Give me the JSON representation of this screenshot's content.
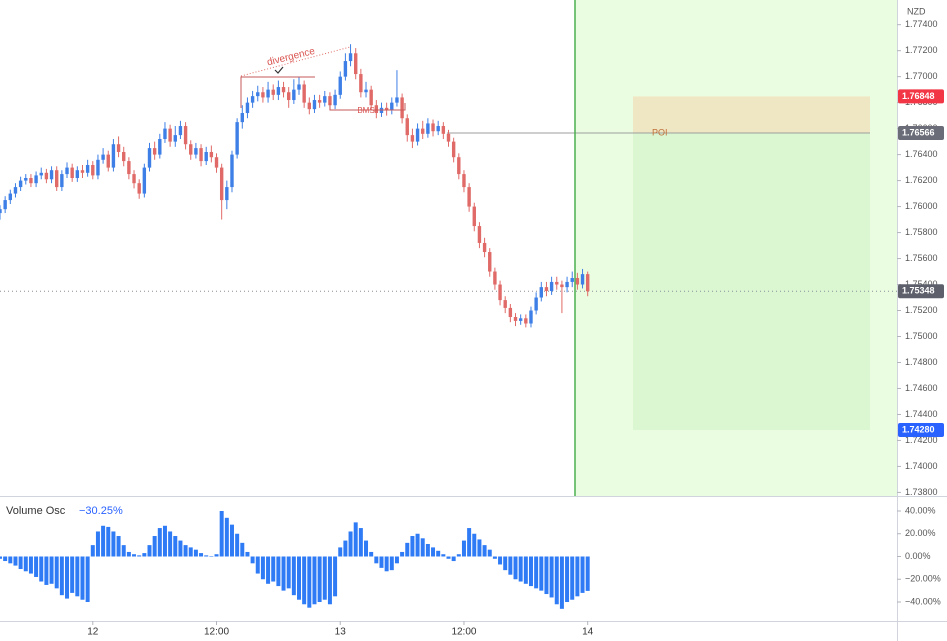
{
  "chart_data": {
    "type": "candlestick",
    "y_unit": "NZD",
    "x": [
      -9,
      -8.5,
      -8,
      -7.5,
      -7,
      -6.5,
      -6,
      -5.5,
      -5,
      -4.5,
      -4,
      -3.5,
      -3,
      -2.5,
      -2,
      -1.5,
      -1,
      -0.5,
      0,
      0.5,
      1,
      1.5,
      2,
      2.5,
      3,
      3.5,
      4,
      4.5,
      5,
      5.5,
      6,
      6.5,
      7,
      7.5,
      8,
      8.5,
      9,
      9.5,
      10,
      10.5,
      11,
      11.5,
      12,
      12.5,
      13,
      13.5,
      14,
      14.5,
      15,
      15.5,
      16,
      16.5,
      17,
      17.5,
      18,
      18.5,
      19,
      19.5,
      20,
      20.5,
      21,
      21.5,
      22,
      22.5,
      23,
      23.5,
      24,
      24.5,
      25,
      25.5,
      26,
      26.5,
      27,
      27.5,
      28,
      28.5,
      29,
      29.5,
      30,
      30.5,
      31,
      31.5,
      32,
      32.5,
      33,
      33.5,
      34,
      34.5,
      35,
      35.5,
      36,
      36.5,
      37,
      37.5,
      38,
      38.5,
      39,
      39.5,
      40,
      40.5,
      41,
      41.5,
      42,
      42.5,
      43,
      43.5,
      44,
      44.5,
      45,
      45.5,
      46,
      46.5,
      47,
      47.5,
      48
    ],
    "xlim": [
      -9,
      78
    ],
    "xticks": [
      {
        "value": 0,
        "label": "12"
      },
      {
        "value": 12,
        "label": "12:00"
      },
      {
        "value": 24,
        "label": "13"
      },
      {
        "value": 36,
        "label": "12:00"
      },
      {
        "value": 48,
        "label": "14"
      }
    ],
    "open": [
      1.7595,
      1.7598,
      1.7605,
      1.761,
      1.7615,
      1.762,
      1.7622,
      1.7618,
      1.7624,
      1.7626,
      1.7621,
      1.7628,
      1.7615,
      1.7625,
      1.763,
      1.7622,
      1.7628,
      1.7626,
      1.7632,
      1.7624,
      1.7636,
      1.764,
      1.763,
      1.7648,
      1.7642,
      1.7635,
      1.7625,
      1.7618,
      1.761,
      1.763,
      1.7645,
      1.764,
      1.7652,
      1.766,
      1.765,
      1.7655,
      1.7662,
      1.7648,
      1.764,
      1.7645,
      1.7635,
      1.7642,
      1.7638,
      1.763,
      1.7605,
      1.7615,
      1.764,
      1.7665,
      1.7672,
      1.768,
      1.7685,
      1.7688,
      1.7684,
      1.769,
      1.7686,
      1.7692,
      1.7688,
      1.7682,
      1.769,
      1.7694,
      1.768,
      1.7675,
      1.7682,
      1.768,
      1.7685,
      1.7678,
      1.7686,
      1.77,
      1.7712,
      1.7718,
      1.7702,
      1.7688,
      1.769,
      1.7678,
      1.7672,
      1.7676,
      1.7674,
      1.768,
      1.7684,
      1.7668,
      1.7655,
      1.765,
      1.766,
      1.7656,
      1.7664,
      1.7658,
      1.7662,
      1.7656,
      1.765,
      1.7638,
      1.7625,
      1.7615,
      1.76,
      1.7585,
      1.7572,
      1.7565,
      1.755,
      1.754,
      1.7528,
      1.7522,
      1.7515,
      1.7512,
      1.7514,
      1.751,
      1.752,
      1.753,
      1.7538,
      1.7535,
      1.7542,
      1.754,
      1.7538,
      1.7542,
      1.7545,
      1.754,
      1.7548
    ],
    "high": [
      1.7601,
      1.7608,
      1.7613,
      1.7618,
      1.7623,
      1.7625,
      1.7625,
      1.7627,
      1.763,
      1.7629,
      1.7631,
      1.7631,
      1.7628,
      1.7634,
      1.7633,
      1.7631,
      1.7632,
      1.7636,
      1.7635,
      1.764,
      1.7645,
      1.7643,
      1.7652,
      1.7654,
      1.7646,
      1.7638,
      1.7628,
      1.7621,
      1.7633,
      1.7649,
      1.765,
      1.7656,
      1.7665,
      1.7663,
      1.7662,
      1.7666,
      1.7665,
      1.7651,
      1.7649,
      1.7648,
      1.7646,
      1.7647,
      1.7641,
      1.7633,
      1.762,
      1.7643,
      1.7668,
      1.7678,
      1.7684,
      1.7689,
      1.7693,
      1.7692,
      1.7696,
      1.7694,
      1.7697,
      1.7696,
      1.7692,
      1.7698,
      1.77,
      1.7697,
      1.7684,
      1.7686,
      1.7686,
      1.7689,
      1.7688,
      1.769,
      1.7704,
      1.7718,
      1.7725,
      1.7722,
      1.7706,
      1.7696,
      1.7693,
      1.7682,
      1.768,
      1.768,
      1.7684,
      1.7705,
      1.7687,
      1.7671,
      1.766,
      1.7664,
      1.7666,
      1.7668,
      1.7667,
      1.7666,
      1.7665,
      1.7659,
      1.7653,
      1.7641,
      1.7628,
      1.7618,
      1.7603,
      1.7588,
      1.7576,
      1.7568,
      1.7553,
      1.7543,
      1.7531,
      1.7525,
      1.7518,
      1.7517,
      1.7517,
      1.7523,
      1.7534,
      1.7542,
      1.7542,
      1.7546,
      1.7546,
      1.7543,
      1.7546,
      1.755,
      1.7549,
      1.7552,
      1.755
    ],
    "low": [
      1.759,
      1.7595,
      1.7602,
      1.7607,
      1.7612,
      1.7617,
      1.7615,
      1.7615,
      1.7621,
      1.7618,
      1.7618,
      1.7612,
      1.7612,
      1.7622,
      1.7619,
      1.7619,
      1.7622,
      1.7623,
      1.7621,
      1.7621,
      1.7633,
      1.7627,
      1.7627,
      1.7638,
      1.7631,
      1.7621,
      1.7614,
      1.7606,
      1.7607,
      1.7627,
      1.7636,
      1.7637,
      1.7649,
      1.7646,
      1.7646,
      1.7652,
      1.7644,
      1.7636,
      1.7637,
      1.7631,
      1.7632,
      1.7634,
      1.7626,
      1.759,
      1.7598,
      1.7611,
      1.7637,
      1.766,
      1.7668,
      1.7676,
      1.7681,
      1.768,
      1.768,
      1.7682,
      1.7682,
      1.7684,
      1.7676,
      1.7679,
      1.7686,
      1.7676,
      1.7671,
      1.7672,
      1.7676,
      1.7677,
      1.7674,
      1.7675,
      1.7683,
      1.7697,
      1.7708,
      1.7698,
      1.7684,
      1.7684,
      1.7674,
      1.7668,
      1.7669,
      1.767,
      1.7671,
      1.7677,
      1.7664,
      1.765,
      1.7645,
      1.7647,
      1.7652,
      1.7653,
      1.7654,
      1.7655,
      1.7652,
      1.7646,
      1.7634,
      1.7621,
      1.7611,
      1.7596,
      1.7581,
      1.7568,
      1.7561,
      1.7546,
      1.7536,
      1.7524,
      1.7518,
      1.7511,
      1.7508,
      1.7509,
      1.7507,
      1.7507,
      1.7517,
      1.7527,
      1.7531,
      1.7532,
      1.7536,
      1.7518,
      1.7534,
      1.7538,
      1.7536,
      1.7537,
      1.7531
    ],
    "close": [
      1.7598,
      1.7605,
      1.761,
      1.7615,
      1.762,
      1.7622,
      1.7618,
      1.7624,
      1.7626,
      1.7621,
      1.7628,
      1.7615,
      1.7625,
      1.763,
      1.7622,
      1.7628,
      1.7626,
      1.7632,
      1.7624,
      1.7636,
      1.764,
      1.763,
      1.7648,
      1.7642,
      1.7635,
      1.7625,
      1.7618,
      1.761,
      1.763,
      1.7645,
      1.764,
      1.7652,
      1.766,
      1.765,
      1.7655,
      1.7662,
      1.7648,
      1.764,
      1.7645,
      1.7635,
      1.7642,
      1.7638,
      1.763,
      1.7605,
      1.7615,
      1.764,
      1.7665,
      1.7672,
      1.768,
      1.7685,
      1.7688,
      1.7684,
      1.769,
      1.7686,
      1.7692,
      1.7688,
      1.7682,
      1.769,
      1.7694,
      1.768,
      1.7675,
      1.7682,
      1.768,
      1.7685,
      1.7678,
      1.7686,
      1.77,
      1.7712,
      1.7718,
      1.7702,
      1.7688,
      1.769,
      1.7678,
      1.7672,
      1.7676,
      1.7674,
      1.768,
      1.7684,
      1.7668,
      1.7655,
      1.765,
      1.766,
      1.7656,
      1.7664,
      1.7658,
      1.7662,
      1.7656,
      1.765,
      1.7638,
      1.7625,
      1.7615,
      1.76,
      1.7585,
      1.7572,
      1.7565,
      1.755,
      1.754,
      1.7528,
      1.7522,
      1.7515,
      1.7512,
      1.7514,
      1.751,
      1.752,
      1.753,
      1.7538,
      1.7535,
      1.7542,
      1.754,
      1.7538,
      1.7542,
      1.7545,
      1.754,
      1.7548,
      1.75348
    ],
    "up_color": "#3d7fe6",
    "down_color": "#e06a67",
    "ylim": [
      1.7378,
      1.7759
    ],
    "yticks": [
      {
        "value": 1.774,
        "label": "1.77400"
      },
      {
        "value": 1.772,
        "label": "1.77200"
      },
      {
        "value": 1.77,
        "label": "1.77000"
      },
      {
        "value": 1.768,
        "label": "1.76800"
      },
      {
        "value": 1.766,
        "label": "1.76600"
      },
      {
        "value": 1.764,
        "label": "1.76400"
      },
      {
        "value": 1.762,
        "label": "1.76200"
      },
      {
        "value": 1.76,
        "label": "1.76000"
      },
      {
        "value": 1.758,
        "label": "1.75800"
      },
      {
        "value": 1.756,
        "label": "1.75600"
      },
      {
        "value": 1.754,
        "label": "1.75400"
      },
      {
        "value": 1.752,
        "label": "1.75200"
      },
      {
        "value": 1.75,
        "label": "1.75000"
      },
      {
        "value": 1.748,
        "label": "1.74800"
      },
      {
        "value": 1.746,
        "label": "1.74600"
      },
      {
        "value": 1.744,
        "label": "1.74400"
      },
      {
        "value": 1.742,
        "label": "1.74200"
      },
      {
        "value": 1.74,
        "label": "1.74000"
      },
      {
        "value": 1.738,
        "label": "1.73800"
      }
    ],
    "price_labels": [
      {
        "value": 1.76848,
        "label": "1.76848",
        "color": "#f23645"
      },
      {
        "value": 1.76566,
        "label": "1.76566",
        "color": "#6a6d78"
      },
      {
        "value": 1.75348,
        "label": "1.75348",
        "color": "#5d606b"
      },
      {
        "value": 1.7428,
        "label": "1.74280",
        "color": "#2962ff"
      }
    ],
    "annotations": [
      "divergence",
      "BMS",
      "POI"
    ],
    "indicator": {
      "type": "bar",
      "name": "Volume Osc",
      "color": "#2f7bf5",
      "legend_value": {
        "value": -30.25,
        "label": "−30.25%"
      },
      "values": [
        -2,
        -4,
        -6,
        -8,
        -11,
        -13,
        -15,
        -18,
        -22,
        -25,
        -24,
        -28,
        -34,
        -37,
        -32,
        -35,
        -38,
        -40,
        10,
        22,
        27,
        26,
        22,
        18,
        10,
        4,
        2,
        1,
        3,
        10,
        18,
        25,
        27,
        22,
        18,
        14,
        10,
        8,
        6,
        3,
        1,
        0,
        2,
        40,
        34,
        28,
        20,
        12,
        4,
        -6,
        -15,
        -20,
        -24,
        -22,
        -26,
        -30,
        -28,
        -34,
        -38,
        -42,
        -45,
        -42,
        -40,
        -38,
        -42,
        -35,
        8,
        14,
        22,
        30,
        25,
        14,
        4,
        -6,
        -10,
        -13,
        -12,
        -6,
        4,
        12,
        18,
        20,
        16,
        11,
        8,
        5,
        2,
        -2,
        -4,
        2,
        14,
        25,
        20,
        15,
        10,
        6,
        -2,
        -7,
        -12,
        -16,
        -20,
        -22,
        -24,
        -26,
        -28,
        -30,
        -33,
        -36,
        -42,
        -46,
        -40,
        -38,
        -35,
        -32,
        -30.25
      ],
      "ylim": [
        -56.7,
        52.3
      ],
      "yticks": [
        {
          "value": 40,
          "label": "40.00%"
        },
        {
          "value": 20,
          "label": "20.00%"
        },
        {
          "value": 0,
          "label": "0.00%"
        },
        {
          "value": -20,
          "label": "−20.00%"
        },
        {
          "value": -40,
          "label": "−40.00%"
        }
      ]
    }
  }
}
